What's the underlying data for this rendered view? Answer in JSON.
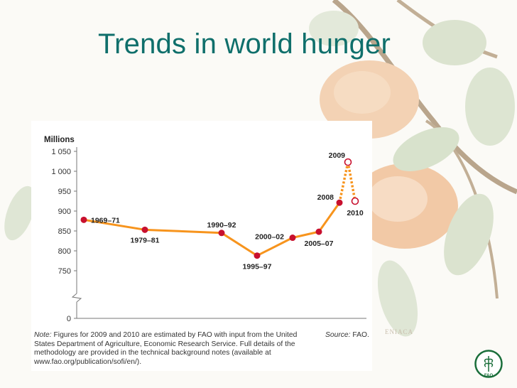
{
  "slide": {
    "title": "Trends in world hunger"
  },
  "chart_data": {
    "type": "line",
    "ylabel": "Millions",
    "yticks": [
      0,
      750,
      800,
      850,
      900,
      950,
      1000,
      1050
    ],
    "ytick_labels": [
      "0",
      "750",
      "800",
      "850",
      "900",
      "950",
      "1 000",
      "1 050"
    ],
    "ylim": [
      750,
      1050
    ],
    "axis_break": true,
    "points": [
      {
        "label": "1969–71",
        "value": 878,
        "estimated": false
      },
      {
        "label": "1979–81",
        "value": 853,
        "estimated": false
      },
      {
        "label": "1990–92",
        "value": 845,
        "estimated": false
      },
      {
        "label": "1995–97",
        "value": 788,
        "estimated": false
      },
      {
        "label": "2000–02",
        "value": 833,
        "estimated": false
      },
      {
        "label": "2005–07",
        "value": 848,
        "estimated": false
      },
      {
        "label": "2008",
        "value": 921,
        "estimated": false
      },
      {
        "label": "2009",
        "value": 1023,
        "estimated": true
      },
      {
        "label": "2010",
        "value": 925,
        "estimated": true
      }
    ],
    "colors": {
      "line": "#f7941d",
      "point": "#c8102e"
    }
  },
  "footer": {
    "note_label": "Note:",
    "note_text": " Figures for 2009 and 2010 are estimated by FAO with input from the United States Department of Agriculture, Economic Research Service. Full details of the methodology are provided in the technical background notes (available at www.fao.org/publication/sofi/en/).",
    "source_label": "Source:",
    "source_text": " FAO."
  },
  "background": {
    "watermark_text": "ENIACA"
  },
  "logo": {
    "letters": "FAO"
  }
}
